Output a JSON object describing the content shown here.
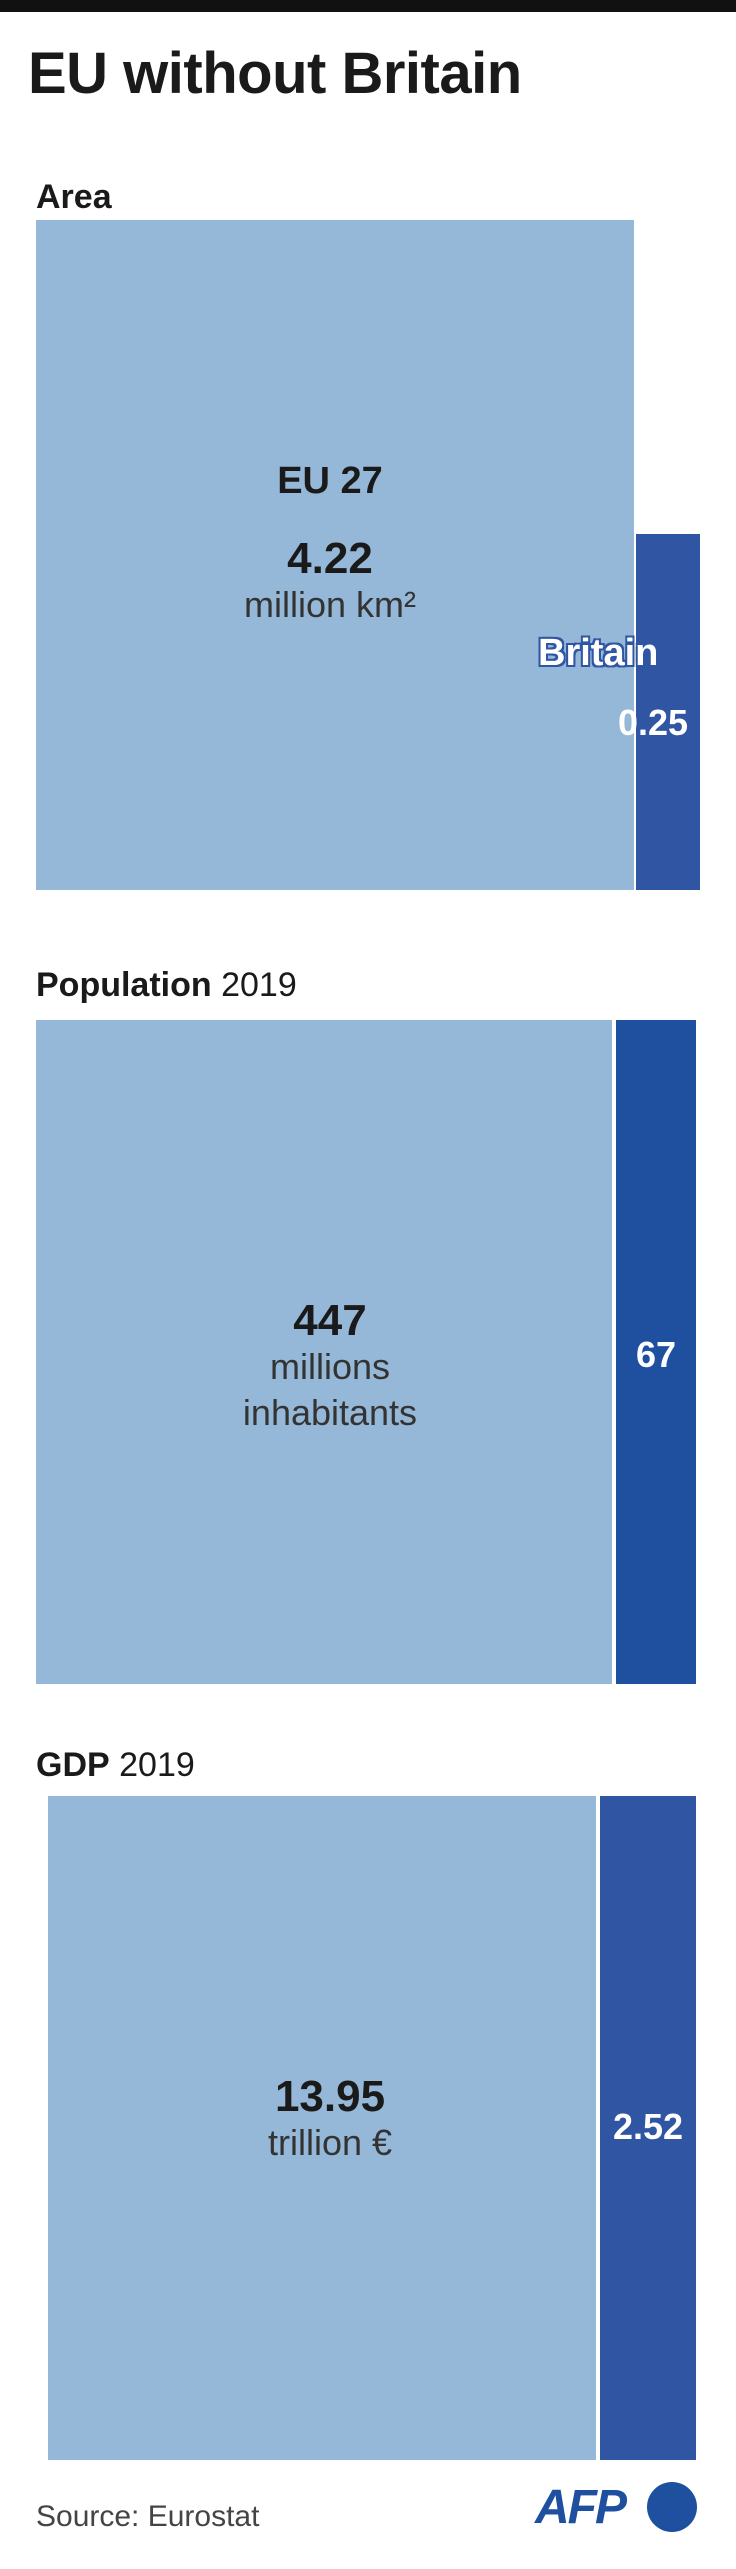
{
  "title": "EU without Britain",
  "sections": {
    "area": {
      "label_bold": "Area",
      "label_year": ""
    },
    "population": {
      "label_bold": "Population",
      "label_year": "2019"
    },
    "gdp": {
      "label_bold": "GDP",
      "label_year": "2019"
    }
  },
  "labels": {
    "eu_name": "EU 27",
    "uk_name": "Britain"
  },
  "chart_data": [
    {
      "type": "treemap",
      "title": "Area",
      "series": [
        {
          "name": "EU 27",
          "value": 4.22,
          "display": "4.22",
          "unit": "million km²"
        },
        {
          "name": "Britain",
          "value": 0.25,
          "display": "0.25"
        }
      ]
    },
    {
      "type": "treemap",
      "title": "Population 2019",
      "series": [
        {
          "name": "EU 27",
          "value": 447,
          "display": "447",
          "unit_line1": "millions",
          "unit_line2": "inhabitants"
        },
        {
          "name": "Britain",
          "value": 67,
          "display": "67"
        }
      ]
    },
    {
      "type": "treemap",
      "title": "GDP 2019",
      "series": [
        {
          "name": "EU 27",
          "value": 13.95,
          "display": "13.95",
          "unit": "trillion €"
        },
        {
          "name": "Britain",
          "value": 2.52,
          "display": "2.52"
        }
      ]
    }
  ],
  "footer": {
    "source": "Source: Eurostat",
    "logo": "AFP"
  },
  "colors": {
    "eu": "#95b8d8",
    "uk": "#2f55a3",
    "uk_population": "#1f4f9f"
  }
}
